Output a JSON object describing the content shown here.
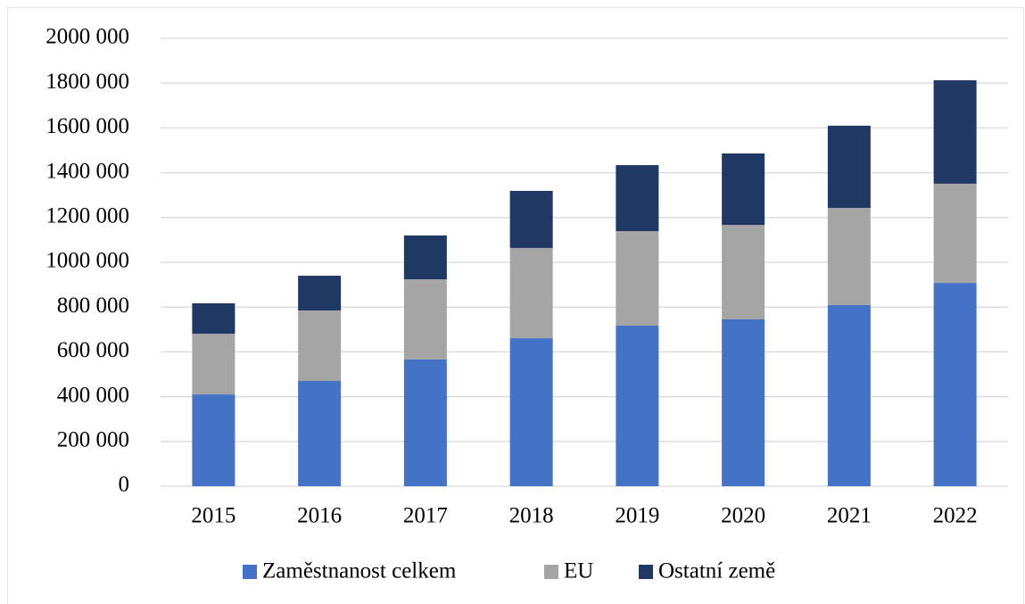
{
  "chart_data": {
    "type": "stacked_bar",
    "categories": [
      "2015",
      "2016",
      "2017",
      "2018",
      "2019",
      "2020",
      "2021",
      "2022"
    ],
    "series": [
      {
        "name": "Zaměstnanost celkem",
        "color": "#4472c4",
        "values": [
          410000,
          470000,
          566000,
          661000,
          717000,
          745000,
          809000,
          908000
        ]
      },
      {
        "name": "EU",
        "color": "#a5a5a5",
        "values": [
          271000,
          315000,
          358000,
          403000,
          422000,
          422000,
          434000,
          443000
        ]
      },
      {
        "name": "Ostatní země",
        "color": "#203864",
        "values": [
          136000,
          155000,
          196000,
          255000,
          295000,
          319000,
          367000,
          462000
        ]
      }
    ],
    "ylim": [
      0,
      2000000
    ],
    "yticks": [
      0,
      {
        "value": 200000,
        "label": "200 000"
      },
      {
        "value": 400000,
        "label": "400 000"
      },
      {
        "value": 600000,
        "label": "600 000"
      },
      {
        "value": 800000,
        "label": "800 000"
      },
      {
        "value": 1000000,
        "label": "1000 000"
      },
      {
        "value": 1200000,
        "label": "1200 000"
      },
      {
        "value": 1400000,
        "label": "1400 000"
      },
      {
        "value": 1600000,
        "label": "1600 000"
      },
      {
        "value": 1800000,
        "label": "1800 000"
      },
      {
        "value": 2000000,
        "label": "2000 000"
      }
    ],
    "grid": true,
    "legend": "bottom"
  }
}
